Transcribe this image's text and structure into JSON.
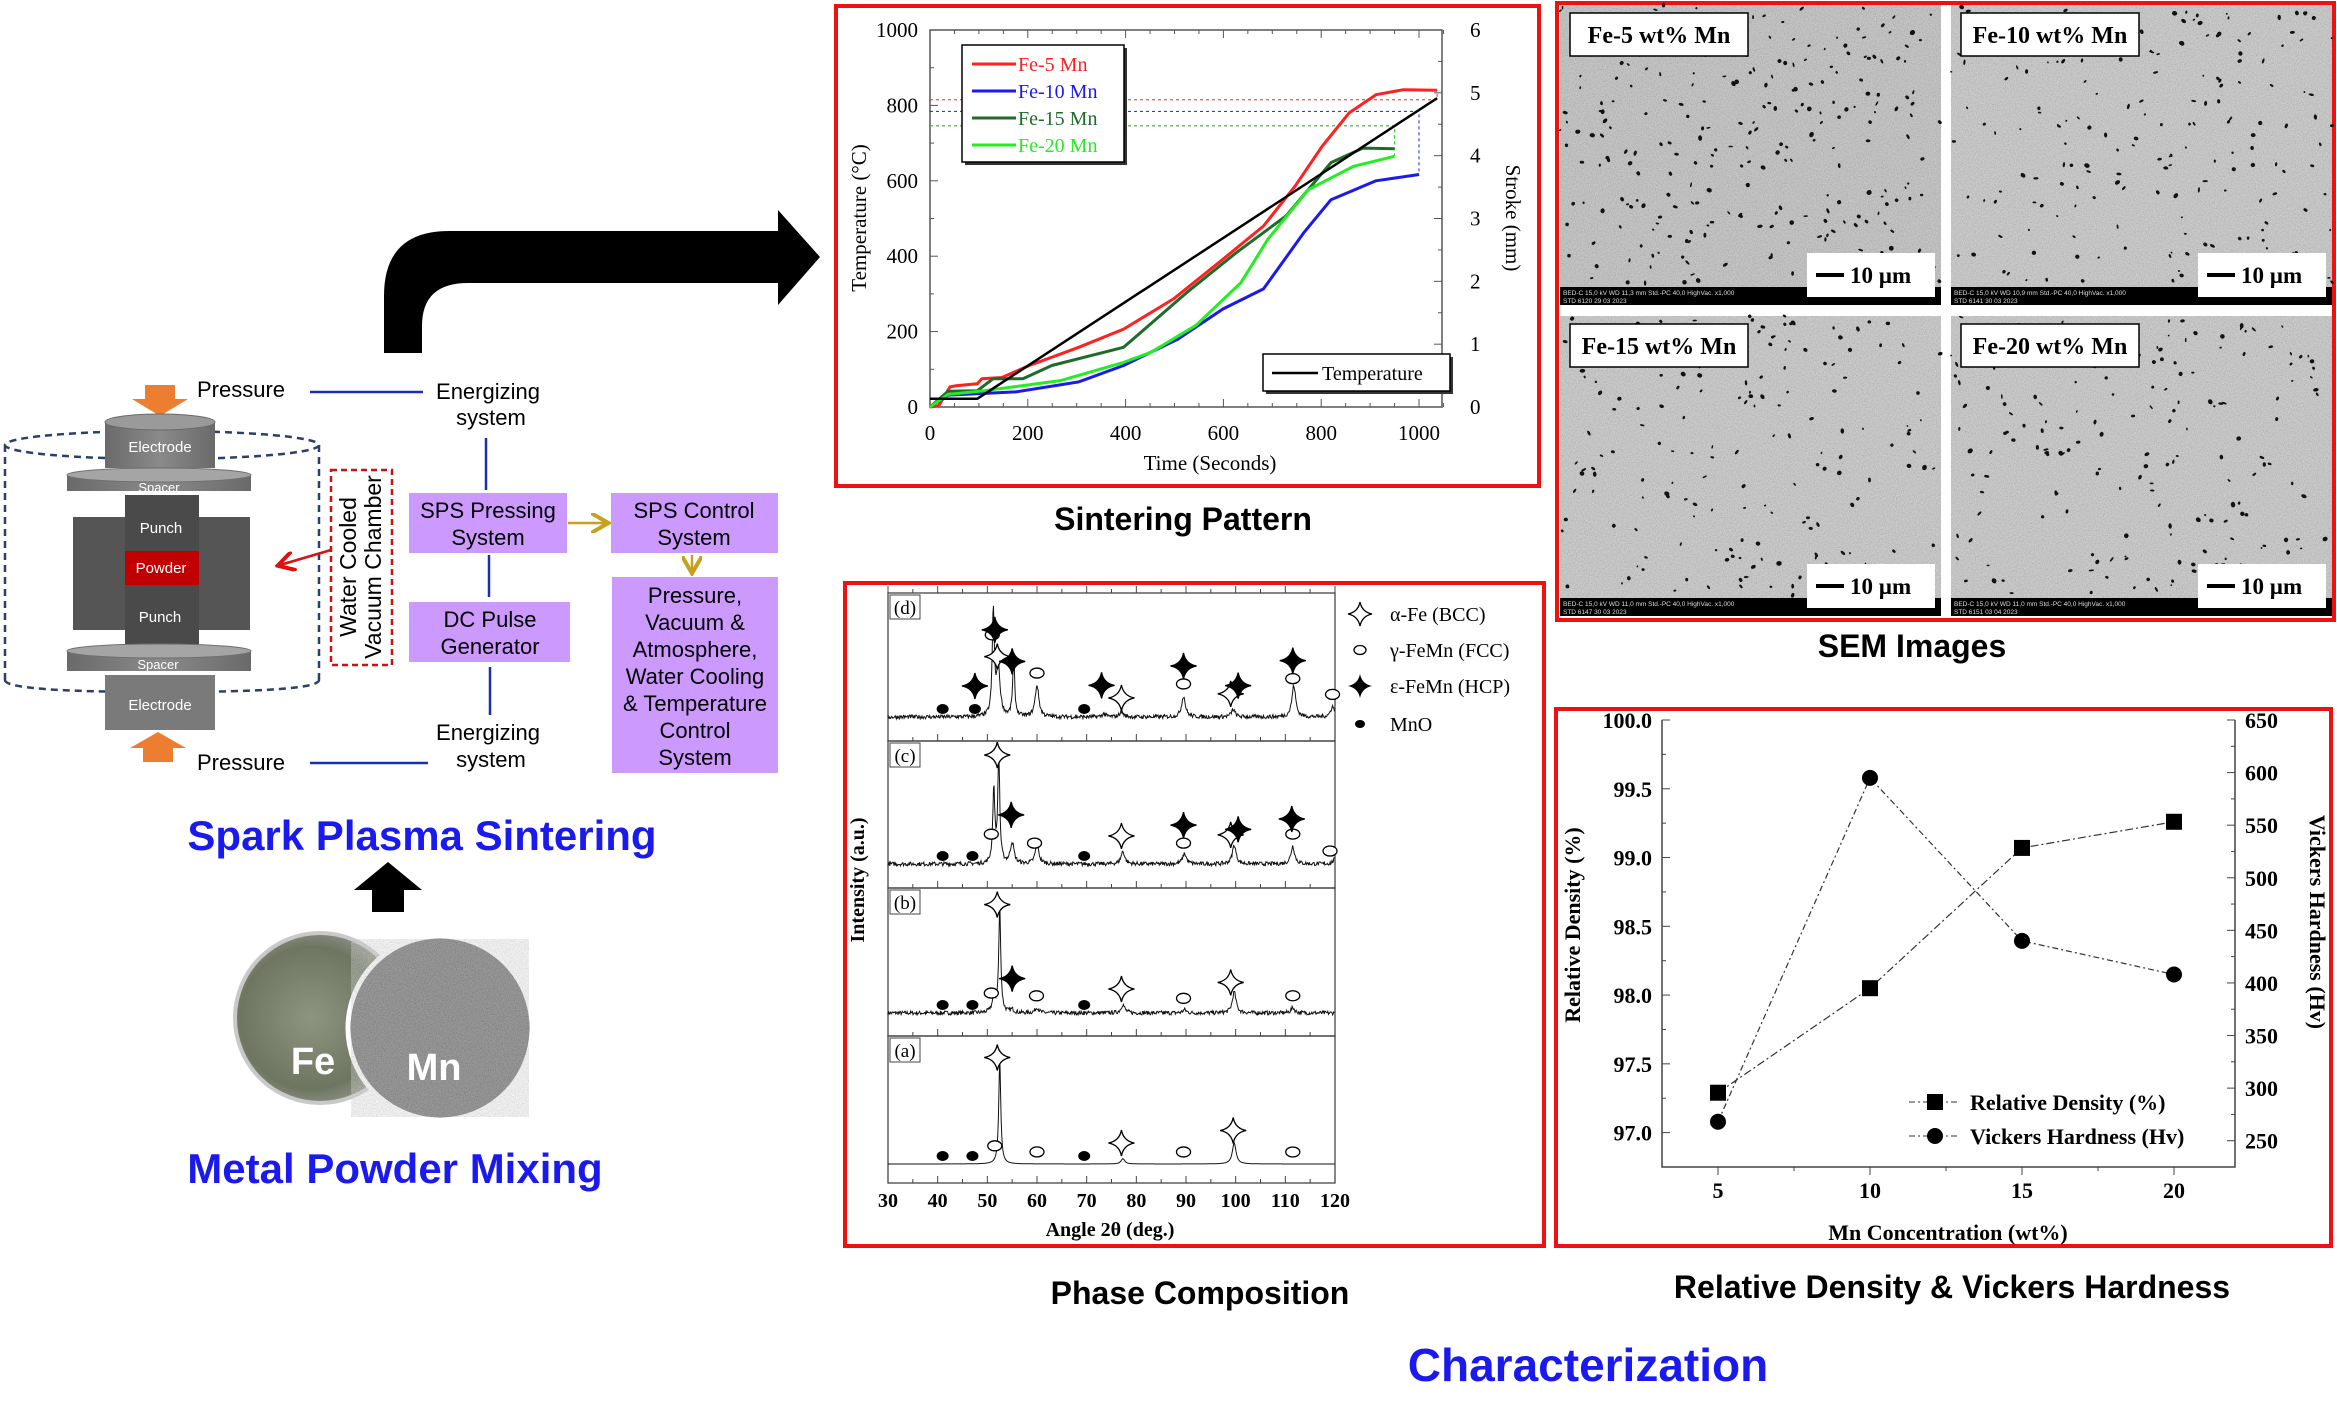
{
  "sps_diagram": {
    "pressure_top": "Pressure",
    "pressure_bottom": "Pressure",
    "energizing_top": [
      "Energizing",
      "system"
    ],
    "energizing_bottom": [
      "Energizing",
      "system"
    ],
    "electrode_top": "Electrode",
    "electrode_bottom": "Electrode",
    "spacer_top": "Spacer",
    "spacer_bottom": "Spacer",
    "punch_top": "Punch",
    "punch_bottom": "Punch",
    "powder": "Powder",
    "chamber": [
      "Water Cooled",
      "Vacuum Chamber"
    ],
    "pressing_system": [
      "SPS Pressing",
      "System"
    ],
    "dc_pulse": [
      "DC Pulse",
      "Generator"
    ],
    "control_system": [
      "SPS Control",
      "System"
    ],
    "control_params": [
      "Pressure,",
      "Vacuum &",
      "Atmosphere,",
      "Water Cooling",
      "& Temperature",
      "Control",
      "System"
    ]
  },
  "titles": {
    "spark_plasma_sintering": "Spark Plasma Sintering",
    "metal_powder_mixing": "Metal Powder Mixing",
    "sintering_pattern": "Sintering Pattern",
    "phase_composition": "Phase Composition",
    "sem_images": "SEM Images",
    "density_hardness": "Relative Density & Vickers Hardness",
    "characterization": "Characterization"
  },
  "powder": {
    "fe": "Fe",
    "mn": "Mn"
  },
  "sem": {
    "panels": [
      {
        "label": "Fe-5 wt% Mn",
        "scale": "10 µm",
        "info": [
          "BED-C  15,0 kV  WD 11,3 mm   Std.-PC 40,0   HighVac.  x1,000",
          "STD   6120   29 03 2023"
        ]
      },
      {
        "label": "Fe-10 wt% Mn",
        "scale": "10 µm",
        "info": [
          "BED-C  15,0 kV  WD 10,9 mm   Std.-PC 40,0   HighVac.  x1,000",
          "STD   6141   30 03 2023"
        ]
      },
      {
        "label": "Fe-15 wt% Mn",
        "scale": "10 µm",
        "info": [
          "BED-C  15,0 kV  WD 11,0 mm   Std.-PC 40,0   HighVac.  x1,000",
          "STD   6147   30 03 2023"
        ]
      },
      {
        "label": "Fe-20 wt% Mn",
        "scale": "10 µm",
        "info": [
          "BED-C  15,0 kV  WD 11,0 mm   Std.-PC 40,0   HighVac.  x1,000",
          "STD   6151   03 04 2023"
        ]
      }
    ]
  },
  "colors": {
    "frame_red": "#ee1111",
    "title_blue": "#1a1aee",
    "box_purple": "#cc99ff",
    "connector_blue": "#1a2fb0",
    "connector_gold": "#c8a020",
    "pressure_orange": "#ed7d31",
    "powder_red": "#c00000"
  },
  "chart_data": [
    {
      "type": "line",
      "xlabel": "Time (Seconds)",
      "ylabel": "Temperature (°C)",
      "y2label": "Stroke (mm)",
      "xlim": [
        0,
        1050
      ],
      "ylim": [
        0,
        1000
      ],
      "y2lim": [
        0,
        6
      ],
      "xticks": [
        "0",
        "200",
        "400",
        "600",
        "800",
        "1000"
      ],
      "yticks": [
        "0",
        "200",
        "400",
        "600",
        "800",
        "1000"
      ],
      "y2ticks": [
        "0",
        "1",
        "2",
        "3",
        "4",
        "5",
        "6"
      ],
      "legend_position": "top-left",
      "series": [
        {
          "name": "Fe-5 Mn",
          "axis": "right",
          "color": "#ff2020",
          "points": [
            [
              0,
              0
            ],
            [
              18,
              0.02
            ],
            [
              41,
              0.32
            ],
            [
              55,
              0.34
            ],
            [
              97,
              0.37
            ],
            [
              106,
              0.45
            ],
            [
              147,
              0.47
            ],
            [
              203,
              0.66
            ],
            [
              304,
              0.95
            ],
            [
              396,
              1.24
            ],
            [
              498,
              1.72
            ],
            [
              599,
              2.35
            ],
            [
              682,
              2.88
            ],
            [
              747,
              3.52
            ],
            [
              802,
              4.15
            ],
            [
              857,
              4.68
            ],
            [
              912,
              4.97
            ],
            [
              968,
              5.05
            ],
            [
              1037,
              5.04
            ]
          ],
          "ref_temperature": 815
        },
        {
          "name": "Fe-10 Mn",
          "axis": "right",
          "color": "#1a1aee",
          "points": [
            [
              0,
              0
            ],
            [
              37,
              0.19
            ],
            [
              175,
              0.24
            ],
            [
              304,
              0.4
            ],
            [
              396,
              0.66
            ],
            [
              507,
              1.08
            ],
            [
              599,
              1.56
            ],
            [
              682,
              1.88
            ],
            [
              765,
              2.78
            ],
            [
              820,
              3.3
            ],
            [
              912,
              3.6
            ],
            [
              1000,
              3.7
            ]
          ],
          "ref_temperature": 784
        },
        {
          "name": "Fe-15 Mn",
          "axis": "right",
          "color": "#1e6b2a",
          "points": [
            [
              0,
              0
            ],
            [
              37,
              0.25
            ],
            [
              97,
              0.26
            ],
            [
              129,
              0.45
            ],
            [
              190,
              0.45
            ],
            [
              249,
              0.66
            ],
            [
              396,
              0.95
            ],
            [
              525,
              1.82
            ],
            [
              627,
              2.46
            ],
            [
              728,
              3.04
            ],
            [
              820,
              3.89
            ],
            [
              885,
              4.12
            ],
            [
              950,
              4.11
            ]
          ],
          "ref_temperature": 746
        },
        {
          "name": "Fe-20 Mn",
          "axis": "right",
          "color": "#22ee22",
          "points": [
            [
              0,
              0
            ],
            [
              37,
              0.2
            ],
            [
              111,
              0.26
            ],
            [
              267,
              0.42
            ],
            [
              396,
              0.71
            ],
            [
              452,
              0.87
            ],
            [
              544,
              1.3
            ],
            [
              636,
              1.98
            ],
            [
              691,
              2.67
            ],
            [
              774,
              3.46
            ],
            [
              866,
              3.83
            ],
            [
              950,
              3.99
            ]
          ],
          "ref_temperature": 746
        },
        {
          "name": "Temperature",
          "axis": "left",
          "color": "#000000",
          "points": [
            [
              0,
              22
            ],
            [
              97,
              22
            ],
            [
              1037,
              819
            ]
          ]
        }
      ]
    },
    {
      "type": "line",
      "xlabel": "Angle 2θ (deg.)",
      "ylabel": "Intensity (a.u.)",
      "xlim": [
        30,
        120
      ],
      "xticks": [
        "30",
        "40",
        "50",
        "60",
        "70",
        "80",
        "90",
        "100",
        "110",
        "120"
      ],
      "legend_position": "right",
      "legend": [
        {
          "phase": "bcc",
          "label": "α-Fe (BCC)"
        },
        {
          "phase": "fcc",
          "label": "γ-FeMn (FCC)"
        },
        {
          "phase": "hcp",
          "label": "ε-FeMn (HCP)"
        },
        {
          "phase": "mno",
          "label": "MnO"
        }
      ],
      "series": [
        {
          "name": "(a)",
          "peaks": [
            [
              52.5,
              1.0
            ],
            [
              77.3,
              0.05
            ],
            [
              99.7,
              0.2
            ]
          ],
          "markers": {
            "mno": [
              41,
              47,
              69.5
            ],
            "fcc": [
              51.5,
              60,
              89.5,
              111.5
            ],
            "bcc": [
              52,
              77,
              99.5
            ],
            "hcp": []
          }
        },
        {
          "name": "(b)",
          "peaks": [
            [
              51.3,
              0.12
            ],
            [
              52.5,
              1.0
            ],
            [
              55,
              0.03
            ],
            [
              60,
              0.05
            ],
            [
              77.3,
              0.08
            ],
            [
              89.7,
              0.03
            ],
            [
              99.7,
              0.2
            ],
            [
              111.5,
              0.05
            ]
          ],
          "markers": {
            "mno": [
              41,
              47,
              69.5
            ],
            "fcc": [
              50.8,
              59.9,
              89.5,
              111.5
            ],
            "bcc": [
              52,
              77,
              99
            ],
            "hcp": [
              55
            ]
          }
        },
        {
          "name": "(c)",
          "peaks": [
            [
              51.3,
              0.7
            ],
            [
              52.3,
              1.0
            ],
            [
              55,
              0.2
            ],
            [
              60,
              0.18
            ],
            [
              77.3,
              0.12
            ],
            [
              89.7,
              0.1
            ],
            [
              99.7,
              0.18
            ],
            [
              111.5,
              0.17
            ],
            [
              120,
              0.05
            ]
          ],
          "markers": {
            "mno": [
              41,
              47,
              69.5
            ],
            "fcc": [
              50.8,
              59.5,
              89.5,
              111.5,
              119
            ],
            "bcc": [
              52,
              77,
              99
            ],
            "hcp": [
              54.8,
              89.5,
              100.5,
              111.3
            ]
          }
        },
        {
          "name": "(d)",
          "peaks": [
            [
              51.2,
              1.0
            ],
            [
              52.2,
              0.45
            ],
            [
              55.3,
              0.55
            ],
            [
              60,
              0.3
            ],
            [
              73.5,
              0.03
            ],
            [
              77,
              0.05
            ],
            [
              89.5,
              0.2
            ],
            [
              99.5,
              0.07
            ],
            [
              111.7,
              0.3
            ],
            [
              119.5,
              0.1
            ]
          ],
          "markers": {
            "mno": [
              41,
              47.5,
              69.5
            ],
            "fcc": [
              51,
              60,
              89.5,
              111.5,
              119.5
            ],
            "bcc": [
              52,
              77,
              99
            ],
            "hcp": [
              47.5,
              51.5,
              55,
              73,
              89.5,
              100.5,
              111.5
            ]
          }
        }
      ]
    },
    {
      "type": "line",
      "xlabel": "Mn Concentration (wt%)",
      "ylabel": "Relative Density (%)",
      "y2label": "Vickers Hardness (Hv)",
      "categories": [
        5,
        10,
        15,
        20
      ],
      "xticks": [
        "5",
        "10",
        "15",
        "20"
      ],
      "yticks": [
        "97.0",
        "97.5",
        "98.0",
        "98.5",
        "99.0",
        "99.5",
        "100.0"
      ],
      "y2ticks": [
        "250",
        "300",
        "350",
        "400",
        "450",
        "500",
        "550",
        "600",
        "650"
      ],
      "ylim": [
        96.75,
        100.0
      ],
      "y2lim": [
        225,
        650
      ],
      "legend_position": "bottom-right",
      "series": [
        {
          "name": "Relative Density (%)",
          "axis": "left",
          "marker": "square",
          "values": [
            97.29,
            98.05,
            99.07,
            99.26
          ]
        },
        {
          "name": "Vickers Hardness (Hv)",
          "axis": "right",
          "marker": "circle",
          "values": [
            268,
            595,
            440,
            408
          ]
        }
      ]
    }
  ]
}
